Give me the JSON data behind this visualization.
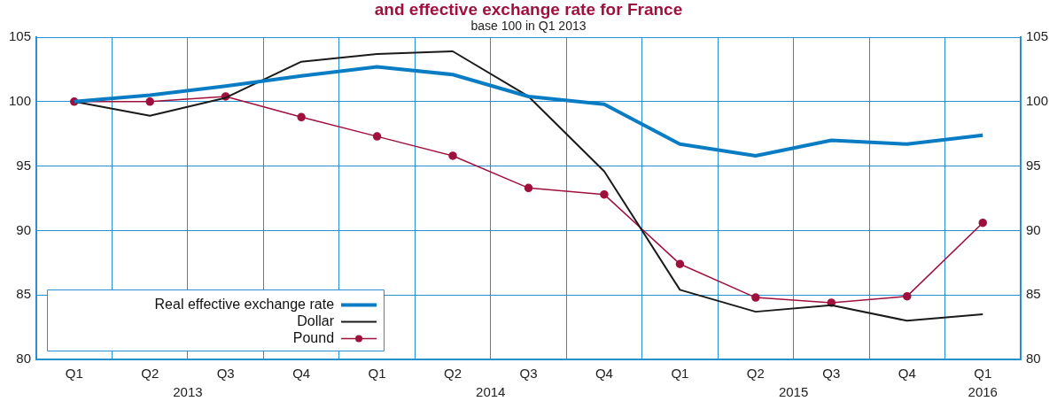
{
  "chart_data": {
    "type": "line",
    "title": "and effective exchange rate for France",
    "subtitle": "base 100 in Q1 2013",
    "categories": [
      "Q1",
      "Q2",
      "Q3",
      "Q4",
      "Q1",
      "Q2",
      "Q3",
      "Q4",
      "Q1",
      "Q2",
      "Q3",
      "Q4",
      "Q1"
    ],
    "series": [
      {
        "name": "Real effective exchange rate",
        "color": "#0a7cc4",
        "values": [
          100,
          100.5,
          101.2,
          102.0,
          102.7,
          102.1,
          100.4,
          99.8,
          96.7,
          95.8,
          97.0,
          96.7,
          97.4
        ],
        "marker": "none"
      },
      {
        "name": "Dollar",
        "color": "#1a1a1a",
        "values": [
          100,
          98.9,
          100.3,
          103.1,
          103.7,
          103.9,
          100.4,
          94.6,
          85.4,
          83.7,
          84.2,
          83.0,
          83.5
        ],
        "marker": "none"
      },
      {
        "name": "Pound",
        "color": "#a0103c",
        "values": [
          100,
          100,
          100.4,
          98.8,
          97.3,
          95.8,
          93.3,
          92.8,
          87.4,
          84.8,
          84.4,
          84.9,
          90.6
        ],
        "marker": "circle"
      }
    ],
    "annotations": [
      "2013",
      "2014",
      "2015",
      "2016"
    ],
    "ylim": [
      80,
      105
    ],
    "yticks": [
      80,
      85,
      90,
      95,
      100,
      105
    ],
    "y2lim": [
      80,
      105
    ],
    "y2ticks": [
      80,
      85,
      90,
      95,
      100,
      105
    ],
    "grid": true,
    "legend": "bottom left",
    "line_style": "solid"
  }
}
